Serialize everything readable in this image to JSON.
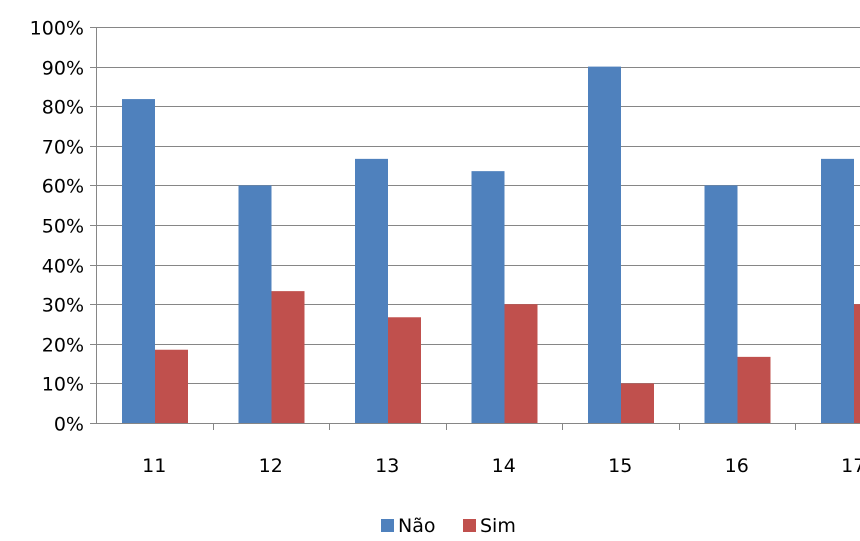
{
  "chart_data": {
    "type": "bar",
    "title": "",
    "xlabel": "",
    "ylabel": "",
    "categories": [
      "11",
      "12",
      "13",
      "14",
      "15",
      "16",
      "17"
    ],
    "series": [
      {
        "name": "Não",
        "color": "#4f81bd",
        "values": [
          0.818,
          0.6,
          0.667,
          0.636,
          0.9,
          0.6,
          0.667
        ]
      },
      {
        "name": "Sim",
        "color": "#c0504d",
        "values": [
          0.185,
          0.333,
          0.267,
          0.3,
          0.1,
          0.167,
          0.3
        ]
      }
    ],
    "ylim": [
      0,
      1
    ],
    "yticks": [
      "0%",
      "10%",
      "20%",
      "30%",
      "40%",
      "50%",
      "60%",
      "70%",
      "80%",
      "90%",
      "100%"
    ],
    "grid": true,
    "legend_position": "bottom"
  }
}
